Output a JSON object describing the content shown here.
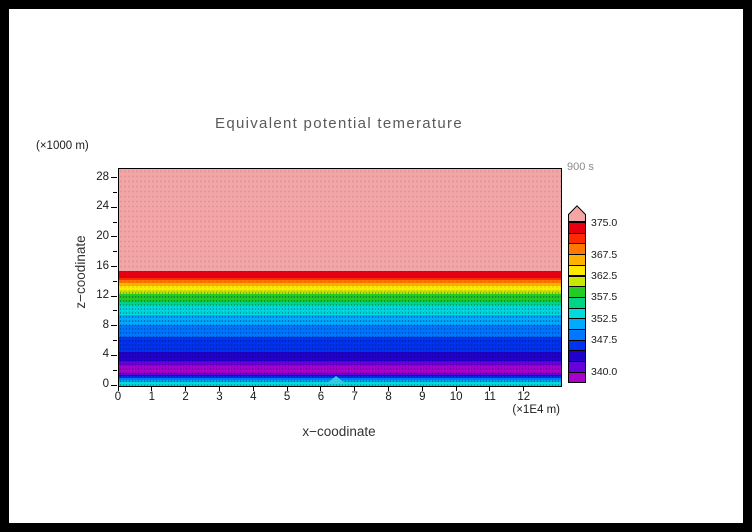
{
  "window": {
    "frame_color": "#000000",
    "canvas_color": "#ffffff"
  },
  "chart": {
    "title": "Equivalent potential temerature",
    "time_label": "900 s",
    "y_unit_label": "(×1000 m)",
    "x_unit_label": "(×1E4 m)",
    "x_axis_label": "x−coodinate",
    "y_axis_label": "z−coodinate",
    "title_color": "#5a5a5a",
    "time_label_color": "#8a8a8a"
  },
  "chart_data": {
    "type": "heatmap",
    "subtype": "filled-contour",
    "field": "equivalent potential temperature (K)",
    "title": "Equivalent potential temerature",
    "time": "900 s",
    "xlabel": "x−coodinate",
    "ylabel": "z−coodinate",
    "x_units": "×1E4 m",
    "y_units": "×1000 m",
    "xlim": [
      0,
      13.07
    ],
    "ylim": [
      0,
      29.3
    ],
    "x_ticks": [
      0,
      1,
      2,
      3,
      4,
      5,
      6,
      7,
      8,
      9,
      10,
      11,
      12
    ],
    "y_ticks": [
      0,
      4,
      8,
      12,
      16,
      20,
      24,
      28
    ],
    "y_minor_ticks": [
      2,
      6,
      10,
      14,
      18,
      22,
      26
    ],
    "contour_interval": 2.5,
    "labeled_levels": [
      340.0,
      347.5,
      352.5,
      357.5,
      362.5,
      367.5,
      375.0
    ],
    "bands": [
      {
        "z_from": 0.0,
        "z_to": 0.5,
        "value_from": 352.5,
        "value_to": 355.0,
        "color": "#00dcdc"
      },
      {
        "z_from": 0.5,
        "z_to": 0.8,
        "value_from": 350.0,
        "value_to": 352.5,
        "color": "#00aaff"
      },
      {
        "z_from": 0.8,
        "z_to": 1.05,
        "value_from": 347.5,
        "value_to": 350.0,
        "color": "#0077ff"
      },
      {
        "z_from": 1.05,
        "z_to": 1.3,
        "value_from": 345.0,
        "value_to": 347.5,
        "color": "#0033ee"
      },
      {
        "z_from": 1.3,
        "z_to": 1.5,
        "value_from": 342.5,
        "value_to": 345.0,
        "color": "#2200cc"
      },
      {
        "z_from": 1.5,
        "z_to": 1.75,
        "value_from": 340.0,
        "value_to": 342.5,
        "color": "#6600dd"
      },
      {
        "z_from": 1.75,
        "z_to": 2.9,
        "value_from": 337.5,
        "value_to": 340.0,
        "color": "#aa00cc"
      },
      {
        "z_from": 2.9,
        "z_to": 3.4,
        "value_from": 340.0,
        "value_to": 342.5,
        "color": "#6600dd"
      },
      {
        "z_from": 3.4,
        "z_to": 4.6,
        "value_from": 342.5,
        "value_to": 345.0,
        "color": "#2200cc"
      },
      {
        "z_from": 4.6,
        "z_to": 6.6,
        "value_from": 345.0,
        "value_to": 347.5,
        "color": "#0033ee"
      },
      {
        "z_from": 6.6,
        "z_to": 8.3,
        "value_from": 347.5,
        "value_to": 350.0,
        "color": "#0077ff"
      },
      {
        "z_from": 8.3,
        "z_to": 9.6,
        "value_from": 350.0,
        "value_to": 352.5,
        "color": "#00aaff"
      },
      {
        "z_from": 9.6,
        "z_to": 10.9,
        "value_from": 352.5,
        "value_to": 355.0,
        "color": "#00dcdc"
      },
      {
        "z_from": 10.9,
        "z_to": 11.5,
        "value_from": 355.0,
        "value_to": 357.5,
        "color": "#00d585"
      },
      {
        "z_from": 11.5,
        "z_to": 12.4,
        "value_from": 357.5,
        "value_to": 360.0,
        "color": "#22cc22"
      },
      {
        "z_from": 12.4,
        "z_to": 12.9,
        "value_from": 360.0,
        "value_to": 362.5,
        "color": "#c8e800"
      },
      {
        "z_from": 12.9,
        "z_to": 13.5,
        "value_from": 362.5,
        "value_to": 365.0,
        "color": "#ffe800"
      },
      {
        "z_from": 13.5,
        "z_to": 13.9,
        "value_from": 365.0,
        "value_to": 367.5,
        "color": "#ffb000"
      },
      {
        "z_from": 13.9,
        "z_to": 14.3,
        "value_from": 367.5,
        "value_to": 370.0,
        "color": "#ff7700"
      },
      {
        "z_from": 14.3,
        "z_to": 14.6,
        "value_from": 370.0,
        "value_to": 372.5,
        "color": "#ff2a00"
      },
      {
        "z_from": 14.6,
        "z_to": 15.5,
        "value_from": 372.5,
        "value_to": 375.0,
        "color": "#e80011"
      },
      {
        "z_from": 15.5,
        "z_to": 29.3,
        "value_from": 375.0,
        "value_to": 380.0,
        "color": "#f4a6a6"
      }
    ],
    "terrain_bump": {
      "x": 6.45,
      "half_width": 0.2,
      "height": 1.1,
      "color": "#33cbe0"
    },
    "colorbar": {
      "position": "right",
      "cells_top_to_bottom": [
        {
          "color": "#f4a6a6",
          "shape": "arrow-up"
        },
        {
          "color": "#e80011",
          "label": "375.0"
        },
        {
          "color": "#ff2a00"
        },
        {
          "color": "#ff7700"
        },
        {
          "color": "#ffb000",
          "label": "367.5"
        },
        {
          "color": "#ffe800"
        },
        {
          "color": "#c8e800",
          "label": "362.5"
        },
        {
          "color": "#22cc22"
        },
        {
          "color": "#00d585",
          "label": "357.5"
        },
        {
          "color": "#00dcdc"
        },
        {
          "color": "#00aaff",
          "label": "352.5"
        },
        {
          "color": "#0077ff"
        },
        {
          "color": "#0033ee",
          "label": "347.5"
        },
        {
          "color": "#2200cc"
        },
        {
          "color": "#6600dd"
        },
        {
          "color": "#aa00cc",
          "label": "340.0"
        }
      ]
    }
  }
}
